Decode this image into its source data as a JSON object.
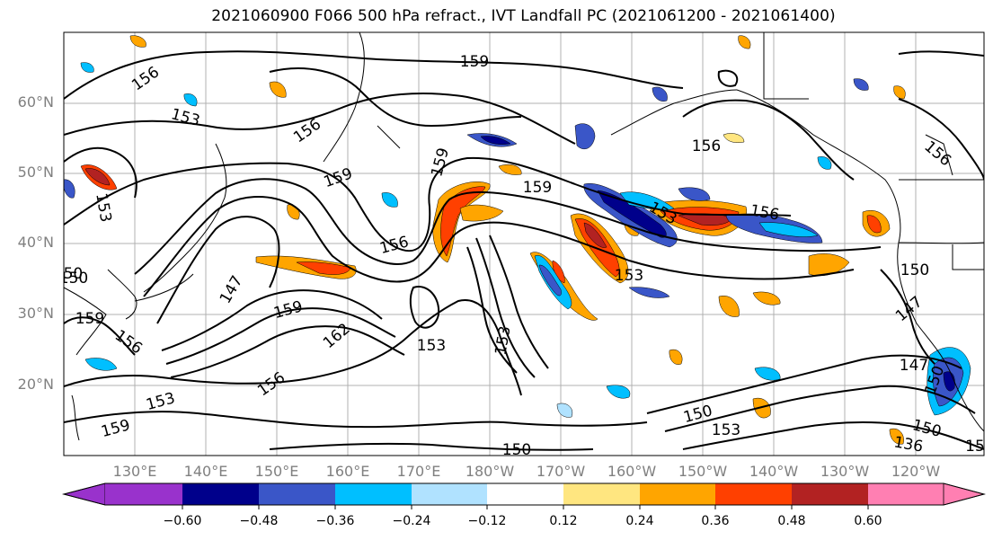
{
  "title": "2021060900 F066 500 hPa refract., IVT Landfall PC (2021061200 - 2021061400)",
  "lat_labels": [
    "60°N",
    "50°N",
    "40°N",
    "30°N",
    "20°N"
  ],
  "lon_labels": [
    "130°E",
    "140°E",
    "150°E",
    "160°E",
    "170°E",
    "180°W",
    "170°W",
    "160°W",
    "150°W",
    "140°W",
    "130°W",
    "120°W"
  ],
  "contour_labels": [
    "156",
    "153",
    "159",
    "156",
    "159",
    "159",
    "156",
    "159",
    "153",
    "156",
    "156",
    "147",
    "159",
    "162",
    "153",
    "153",
    "156",
    "153",
    "150",
    "147",
    "150",
    "147",
    "150",
    "159",
    "150",
    "156",
    "153",
    "159",
    "153",
    "150",
    "150",
    "136",
    "153",
    "156",
    "150",
    "15"
  ],
  "colorbar": {
    "colors": [
      "#9932cc",
      "#00008b",
      "#3a56c8",
      "#00bfff",
      "#b0e2ff",
      "#ffffff",
      "#ffe680",
      "#ffa500",
      "#ff4000",
      "#b22222",
      "#ff7fb2"
    ],
    "ticks": [
      "−0.60",
      "−0.48",
      "−0.36",
      "−0.24",
      "−0.12",
      "0.12",
      "0.24",
      "0.36",
      "0.48",
      "0.60"
    ]
  }
}
